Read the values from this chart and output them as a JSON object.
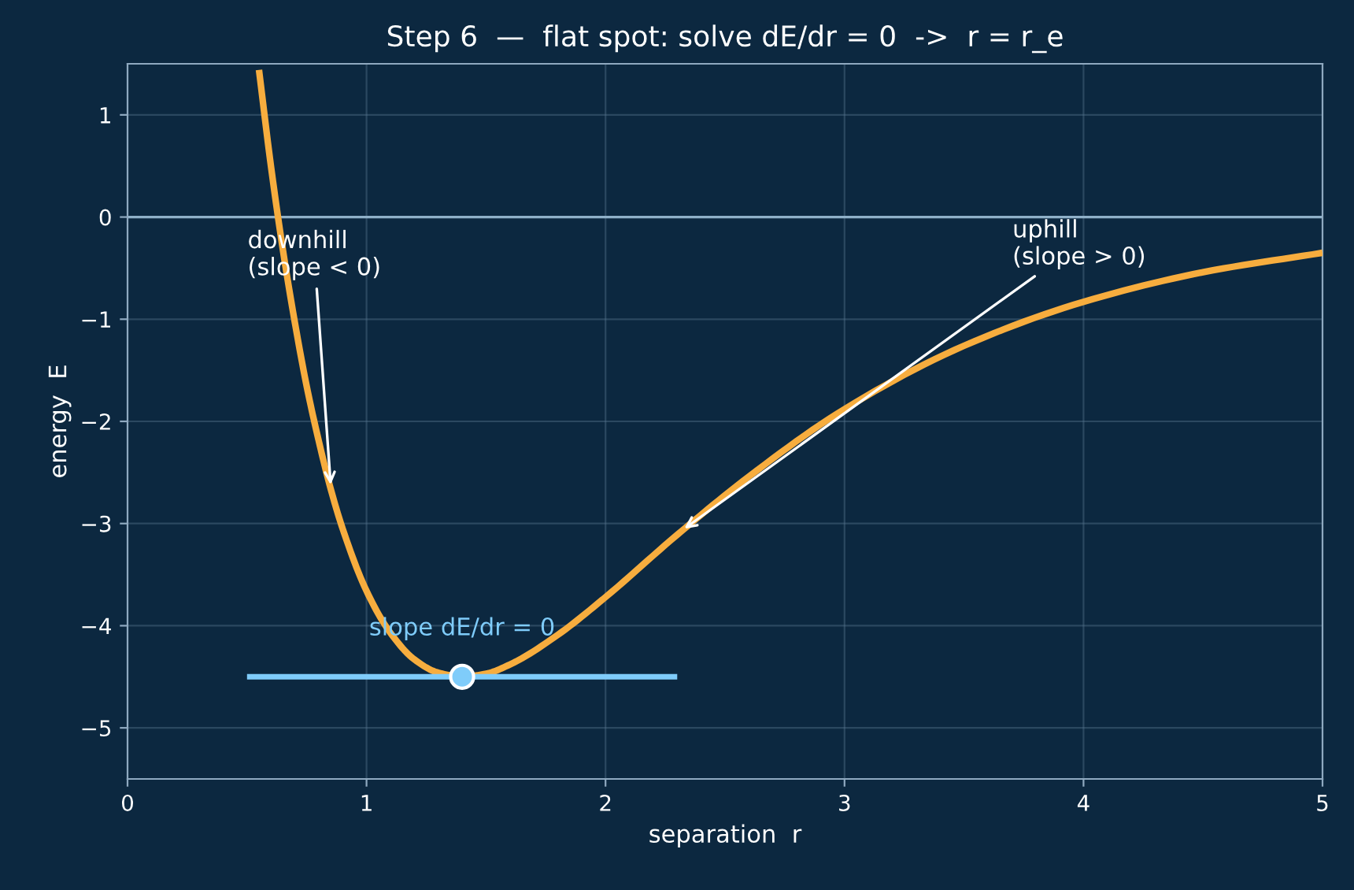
{
  "chart_data": {
    "type": "line",
    "title": "Step 6  —  flat spot: solve dE/dr = 0  ->  r = r_e",
    "xlabel": "separation  r",
    "ylabel": "energy  E",
    "xlim": [
      0,
      5
    ],
    "ylim": [
      -5.5,
      1.5
    ],
    "xticks": [
      0,
      1,
      2,
      3,
      4,
      5
    ],
    "yticks": [
      {
        "value": -5,
        "label": "−5"
      },
      {
        "value": -4,
        "label": "−4"
      },
      {
        "value": -3,
        "label": "−3"
      },
      {
        "value": -2,
        "label": "−2"
      },
      {
        "value": -1,
        "label": "−1"
      },
      0,
      1
    ],
    "grid": true,
    "legend": false,
    "series": [
      {
        "color": "#f7ad3e",
        "x": [
          0.55,
          0.6,
          0.65,
          0.7,
          0.75,
          0.8,
          0.85,
          0.9,
          1.0,
          1.1,
          1.2,
          1.3,
          1.4,
          1.5,
          1.6,
          1.8,
          2.0,
          2.3,
          2.6,
          3.0,
          3.5,
          4.0,
          4.5,
          5.0
        ],
        "values": [
          1.44,
          0.5,
          -0.32,
          -1.03,
          -1.66,
          -2.19,
          -2.66,
          -3.05,
          -3.66,
          -4.07,
          -4.33,
          -4.46,
          -4.5,
          -4.47,
          -4.38,
          -4.09,
          -3.72,
          -3.11,
          -2.54,
          -1.88,
          -1.26,
          -0.83,
          -0.54,
          -0.35
        ]
      },
      {
        "color": "#7fccfa",
        "x": [
          0.5,
          2.3
        ],
        "values": [
          -4.5,
          -4.5
        ]
      },
      {
        "type": "scatter",
        "color": "#7fccfa",
        "marker": "circle",
        "x": [
          1.4
        ],
        "values": [
          -4.5
        ]
      }
    ],
    "ref_lines": [
      {
        "axis": "y",
        "value": 0,
        "color": "#8fb0c8"
      }
    ],
    "annotations": [
      {
        "text": "downhill\n(slope < 0)",
        "x": 0.85,
        "y": -2.62
      },
      {
        "text": "uphill\n(slope > 0)",
        "x": 2.33,
        "y": -3.05
      },
      {
        "text": "slope dE/dr = 0",
        "x": 1.4,
        "y": -4.5
      }
    ]
  }
}
